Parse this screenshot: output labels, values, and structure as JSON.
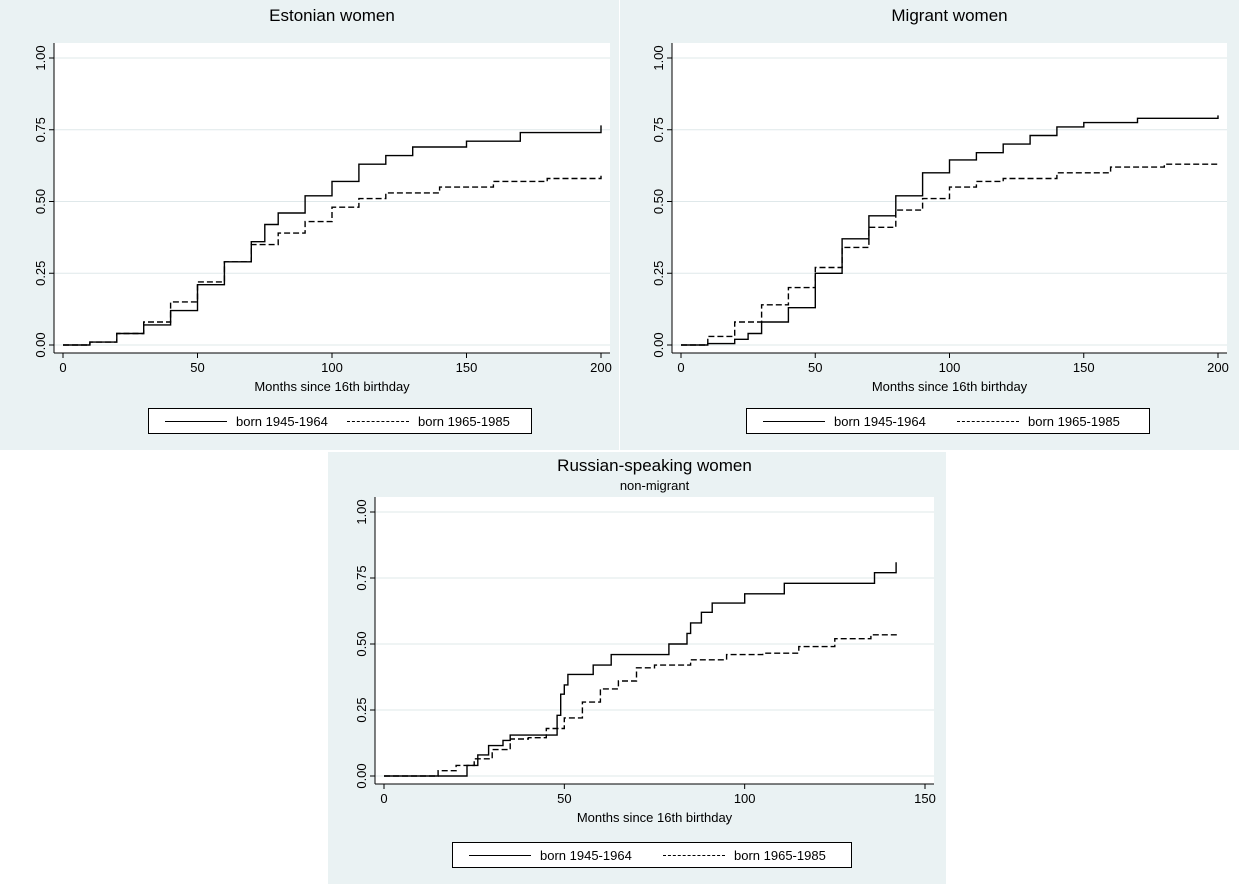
{
  "chart_data": [
    {
      "type": "line",
      "title": "Estonian women",
      "subtitle": "",
      "xlabel": "Months since 16th birthday",
      "ylabel": "",
      "xlim": [
        0,
        200
      ],
      "ylim": [
        0,
        1
      ],
      "xticks": [
        "0",
        "50",
        "100",
        "150",
        "200"
      ],
      "yticks": [
        "0.00",
        "0.25",
        "0.50",
        "0.75",
        "1.00"
      ],
      "grid": "horizontal",
      "legend_position": "bottom",
      "series": [
        {
          "name": "born 1945-1964",
          "style": "solid",
          "x": [
            0,
            10,
            20,
            30,
            40,
            50,
            60,
            70,
            75,
            80,
            90,
            100,
            110,
            120,
            130,
            150,
            170,
            200
          ],
          "y": [
            0,
            0.01,
            0.04,
            0.07,
            0.12,
            0.21,
            0.29,
            0.36,
            0.42,
            0.46,
            0.52,
            0.57,
            0.63,
            0.66,
            0.69,
            0.71,
            0.74,
            0.765
          ]
        },
        {
          "name": "born 1965-1985",
          "style": "dash",
          "x": [
            0,
            10,
            20,
            30,
            40,
            50,
            60,
            70,
            80,
            90,
            100,
            110,
            120,
            140,
            160,
            180,
            200
          ],
          "y": [
            0,
            0.01,
            0.04,
            0.08,
            0.15,
            0.22,
            0.29,
            0.35,
            0.39,
            0.43,
            0.48,
            0.51,
            0.53,
            0.55,
            0.57,
            0.58,
            0.59
          ]
        }
      ]
    },
    {
      "type": "line",
      "title": "Migrant women",
      "subtitle": "",
      "xlabel": "Months since 16th birthday",
      "ylabel": "",
      "xlim": [
        0,
        200
      ],
      "ylim": [
        0,
        1
      ],
      "xticks": [
        "0",
        "50",
        "100",
        "150",
        "200"
      ],
      "yticks": [
        "0.00",
        "0.25",
        "0.50",
        "0.75",
        "1.00"
      ],
      "grid": "horizontal",
      "legend_position": "bottom",
      "series": [
        {
          "name": "born 1945-1964",
          "style": "solid",
          "x": [
            0,
            10,
            20,
            25,
            30,
            40,
            50,
            60,
            70,
            80,
            90,
            100,
            110,
            120,
            130,
            140,
            150,
            170,
            200
          ],
          "y": [
            0,
            0.005,
            0.02,
            0.04,
            0.08,
            0.13,
            0.25,
            0.37,
            0.45,
            0.52,
            0.6,
            0.645,
            0.67,
            0.7,
            0.73,
            0.76,
            0.775,
            0.79,
            0.8
          ]
        },
        {
          "name": "born 1965-1985",
          "style": "dash",
          "x": [
            0,
            10,
            20,
            30,
            40,
            50,
            60,
            70,
            80,
            90,
            100,
            110,
            120,
            140,
            160,
            180,
            200
          ],
          "y": [
            0,
            0.03,
            0.08,
            0.14,
            0.2,
            0.27,
            0.34,
            0.41,
            0.47,
            0.51,
            0.55,
            0.57,
            0.58,
            0.6,
            0.62,
            0.63,
            0.635
          ]
        }
      ]
    },
    {
      "type": "line",
      "title": "Russian-speaking women",
      "subtitle": "non-migrant",
      "xlabel": "Months since 16th birthday",
      "ylabel": "",
      "xlim": [
        0,
        150
      ],
      "ylim": [
        0,
        1
      ],
      "xticks": [
        "0",
        "50",
        "100",
        "150"
      ],
      "yticks": [
        "0.00",
        "0.25",
        "0.50",
        "0.75",
        "1.00"
      ],
      "grid": "horizontal",
      "legend_position": "bottom",
      "series": [
        {
          "name": "born 1945-1964",
          "style": "solid",
          "x": [
            0,
            20,
            23,
            26,
            29,
            31,
            33,
            35,
            40,
            48,
            49,
            50,
            51,
            52,
            58,
            63,
            79,
            84,
            85,
            86,
            88,
            91,
            100,
            111,
            136,
            142
          ],
          "y": [
            0,
            0,
            0.04,
            0.08,
            0.115,
            0.115,
            0.135,
            0.155,
            0.155,
            0.23,
            0.31,
            0.345,
            0.385,
            0.385,
            0.42,
            0.46,
            0.5,
            0.54,
            0.58,
            0.58,
            0.62,
            0.655,
            0.69,
            0.73,
            0.77,
            0.81
          ]
        },
        {
          "name": "born 1965-1985",
          "style": "dash",
          "x": [
            0,
            15,
            20,
            25,
            30,
            35,
            40,
            45,
            50,
            55,
            60,
            65,
            70,
            75,
            85,
            95,
            105,
            115,
            125,
            135,
            142
          ],
          "y": [
            0,
            0.02,
            0.04,
            0.065,
            0.1,
            0.14,
            0.145,
            0.18,
            0.22,
            0.28,
            0.33,
            0.36,
            0.41,
            0.42,
            0.44,
            0.46,
            0.465,
            0.49,
            0.52,
            0.535,
            0.54
          ]
        }
      ]
    }
  ]
}
